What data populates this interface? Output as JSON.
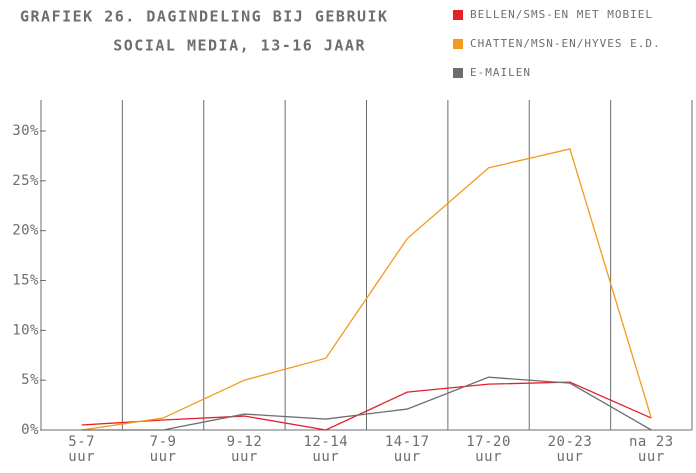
{
  "chart_data": {
    "type": "line",
    "title": [
      "GRAFIEK 26. DAGINDELING BIJ GEBRUIK",
      "SOCIAL MEDIA, 13-16 JAAR"
    ],
    "categories": [
      "5-7 uur",
      "7-9 uur",
      "9-12 uur",
      "12-14 uur",
      "14-17 uur",
      "17-20 uur",
      "20-23 uur",
      "na 23 uur"
    ],
    "series": [
      {
        "name": "BELLEN/SMS-EN MET MOBIEL",
        "color": "#e3202a",
        "values": [
          0.5,
          1.0,
          1.4,
          0,
          3.8,
          4.6,
          4.8,
          1.2
        ]
      },
      {
        "name": "CHATTEN/MSN-EN/HYVES E.D.",
        "color": "#f39a1f",
        "values": [
          0,
          1.2,
          5.0,
          7.2,
          19.2,
          26.3,
          28.2,
          1.2
        ]
      },
      {
        "name": "E-MAILEN",
        "color": "#6d6e70",
        "values": [
          0,
          0,
          1.6,
          1.1,
          2.1,
          5.3,
          4.7,
          0
        ]
      }
    ],
    "ylim": [
      0,
      30
    ],
    "yticks": [
      {
        "value": 0,
        "label": "0%"
      },
      {
        "value": 5,
        "label": "5%"
      },
      {
        "value": 10,
        "label": "10%"
      },
      {
        "value": 15,
        "label": "15%"
      },
      {
        "value": 20,
        "label": "20%"
      },
      {
        "value": 25,
        "label": "25%"
      },
      {
        "value": 30,
        "label": "30%"
      }
    ],
    "legend": "top-right"
  }
}
